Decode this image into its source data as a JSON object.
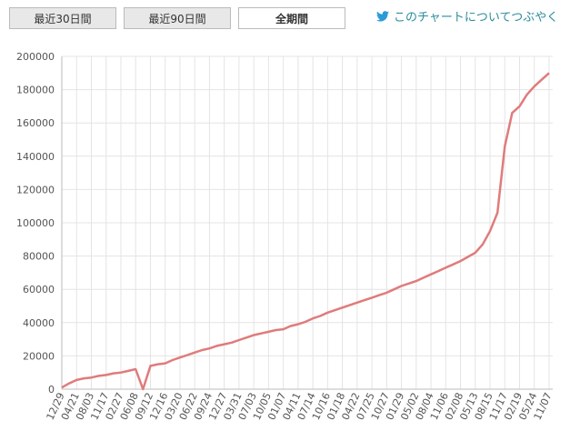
{
  "tabs": [
    "最近30日間",
    "最近90日間",
    "全期間"
  ],
  "active_tab": 2,
  "tweet_link": "このチャートについてつぶやく",
  "chart_data": {
    "type": "line",
    "categories": [
      "12/29",
      null,
      "04/21",
      null,
      "08/03",
      null,
      "11/17",
      null,
      "02/27",
      null,
      "06/08",
      null,
      "09/12",
      null,
      "12/16",
      null,
      "03/20",
      null,
      "06/22",
      null,
      "09/24",
      null,
      "12/27",
      null,
      "03/31",
      null,
      "07/03",
      null,
      "10/05",
      null,
      "01/07",
      null,
      "04/11",
      null,
      "07/14",
      null,
      "10/16",
      null,
      "01/18",
      null,
      "04/22",
      null,
      "07/25",
      null,
      "10/27",
      null,
      "01/29",
      null,
      "05/02",
      null,
      "08/04",
      null,
      "11/06",
      null,
      "02/08",
      null,
      "05/13",
      null,
      "08/15",
      null,
      "11/17",
      null,
      "02/19",
      null,
      "05/24",
      null,
      "11/07"
    ],
    "values": [
      1000,
      3500,
      5500,
      6500,
      7000,
      8000,
      8500,
      9500,
      10000,
      11000,
      12000,
      0,
      14000,
      15000,
      15500,
      17500,
      19000,
      20500,
      22000,
      23500,
      24500,
      26000,
      27000,
      28000,
      29500,
      31000,
      32500,
      33500,
      34500,
      35500,
      36000,
      38000,
      39000,
      40500,
      42500,
      44000,
      46000,
      47500,
      49000,
      50500,
      52000,
      53500,
      55000,
      56500,
      58000,
      60000,
      62000,
      63500,
      65000,
      67000,
      69000,
      71000,
      73000,
      75000,
      77000,
      79500,
      82000,
      87000,
      95000,
      106000,
      146000,
      166000,
      170000,
      177000,
      182000,
      186000,
      190000
    ],
    "color": "#e07b7b",
    "ylim": [
      0,
      200000
    ],
    "yticks": [
      0,
      20000,
      40000,
      60000,
      80000,
      100000,
      120000,
      140000,
      160000,
      180000,
      200000
    ],
    "grid": true
  }
}
